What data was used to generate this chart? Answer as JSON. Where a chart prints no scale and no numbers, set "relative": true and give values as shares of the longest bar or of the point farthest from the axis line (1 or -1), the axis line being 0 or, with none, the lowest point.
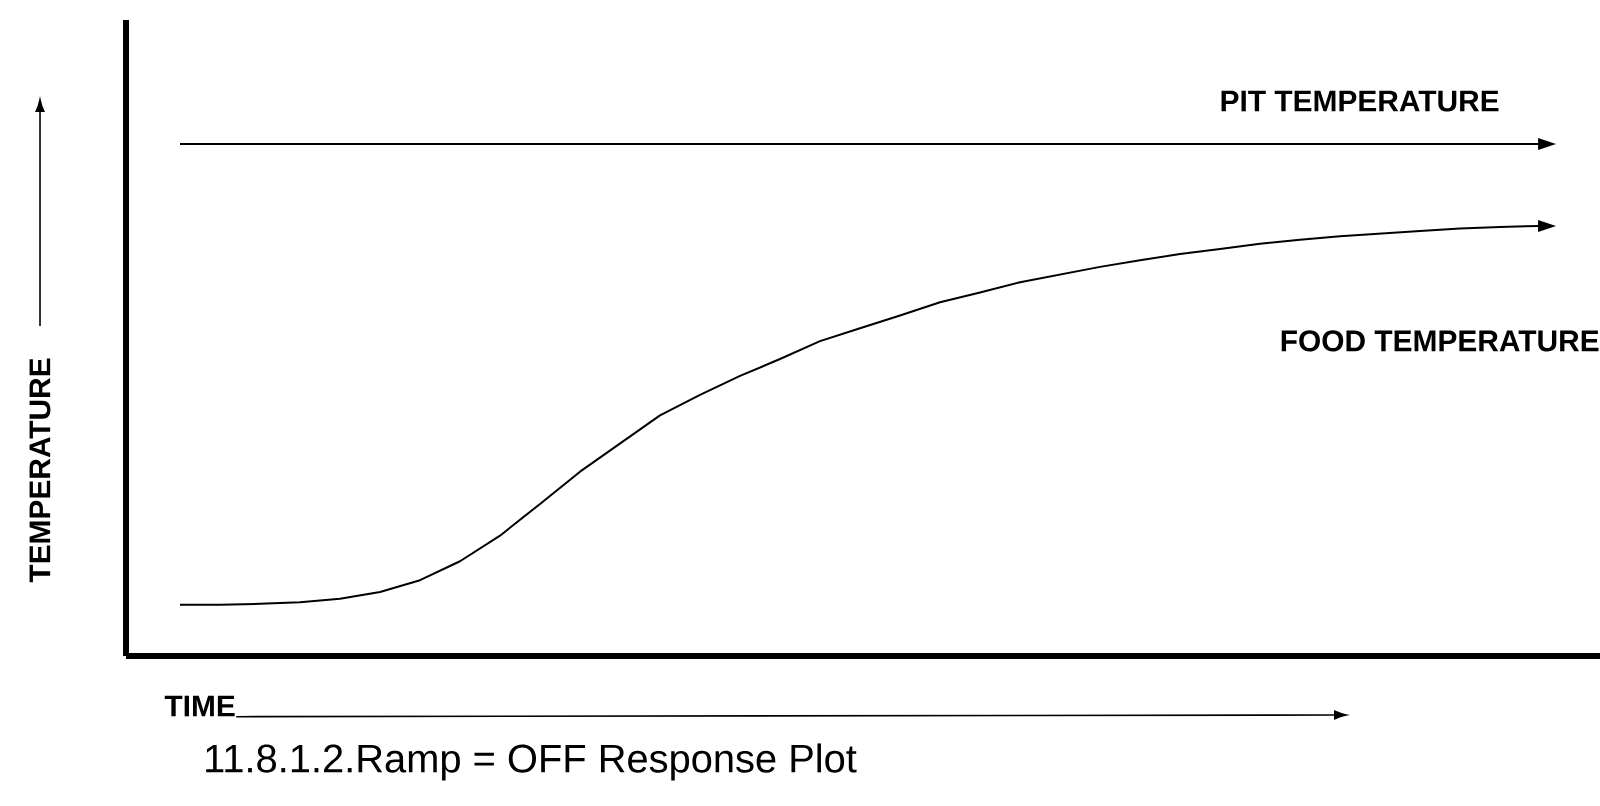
{
  "chart_data": {
    "type": "line",
    "title": "11.8.1.2.Ramp = OFF Response Plot",
    "xlabel": "TIME",
    "ylabel": "TEMPERATURE",
    "relative": true,
    "categories": [
      null,
      null,
      null,
      null,
      null,
      null,
      null,
      null,
      null,
      null,
      null,
      null,
      null,
      null,
      null,
      null,
      null,
      null,
      null,
      null,
      null,
      null,
      null,
      null,
      null,
      null,
      null,
      null,
      null,
      null,
      null,
      null,
      null,
      null,
      null
    ],
    "series": [
      {
        "name": "PIT TEMPERATURE",
        "color": "#000000",
        "values": [
          1,
          1,
          1,
          1,
          1,
          1,
          1,
          1,
          1,
          1,
          1,
          1,
          1,
          1,
          1,
          1,
          1,
          1,
          1,
          1,
          1,
          1,
          1,
          1,
          1,
          1,
          1,
          1,
          1,
          1,
          1,
          1,
          1,
          1,
          1
        ]
      },
      {
        "name": "FOOD TEMPERATURE",
        "color": "#000000",
        "values": [
          0.1,
          0.1,
          0.102,
          0.105,
          0.112,
          0.125,
          0.148,
          0.185,
          0.235,
          0.297,
          0.36,
          0.415,
          0.47,
          0.51,
          0.547,
          0.58,
          0.615,
          0.64,
          0.665,
          0.691,
          0.71,
          0.73,
          0.745,
          0.76,
          0.773,
          0.785,
          0.795,
          0.805,
          0.813,
          0.82,
          0.825,
          0.83,
          0.835,
          0.838,
          0.84
        ]
      }
    ]
  }
}
